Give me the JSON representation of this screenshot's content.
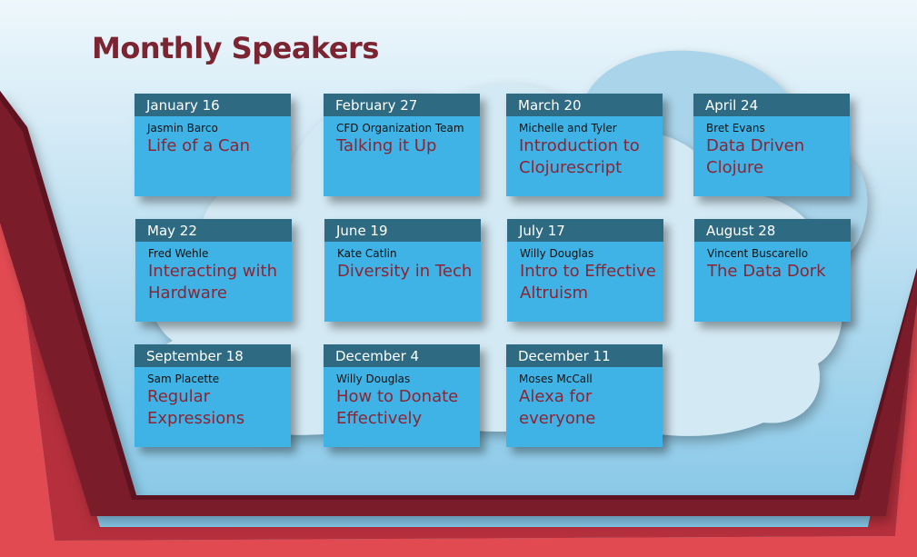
{
  "page": {
    "title": "Monthly Speakers"
  },
  "colors": {
    "title": "#7b2432",
    "card_fill": "#3fb3e5",
    "card_header": "#2f6a83",
    "topic_text": "#8a2535",
    "frame_dark": "#7a1f2c",
    "frame_light": "#e0484f",
    "sky_top": "#e9f5fb",
    "sky_bottom": "#8fcbe8",
    "cloud": "#cfe6f1"
  },
  "speakers": [
    {
      "date": "January 16",
      "speaker": "Jasmin Barco",
      "topic": "Life of a Can"
    },
    {
      "date": "February 27",
      "speaker": "CFD Organization Team",
      "topic": "Talking it Up"
    },
    {
      "date": "March 20",
      "speaker": "Michelle and Tyler",
      "topic": "Introduction to Clojurescript"
    },
    {
      "date": "April 24",
      "speaker": "Bret Evans",
      "topic": "Data Driven Clojure"
    },
    {
      "date": "May 22",
      "speaker": "Fred Wehle",
      "topic": "Interacting with Hardware"
    },
    {
      "date": "June 19",
      "speaker": "Kate Catlin",
      "topic": "Diversity in Tech"
    },
    {
      "date": "July 17",
      "speaker": "Willy Douglas",
      "topic": "Intro to Effective Altruism"
    },
    {
      "date": "August 28",
      "speaker": "Vincent Buscarello",
      "topic": "The Data Dork"
    },
    {
      "date": "September 18",
      "speaker": "Sam Placette",
      "topic": "Regular Expressions"
    },
    {
      "date": "December 4",
      "speaker": "Willy Douglas",
      "topic": "How to Donate Effectively"
    },
    {
      "date": "December 11",
      "speaker": "Moses McCall",
      "topic": "Alexa for everyone"
    }
  ]
}
